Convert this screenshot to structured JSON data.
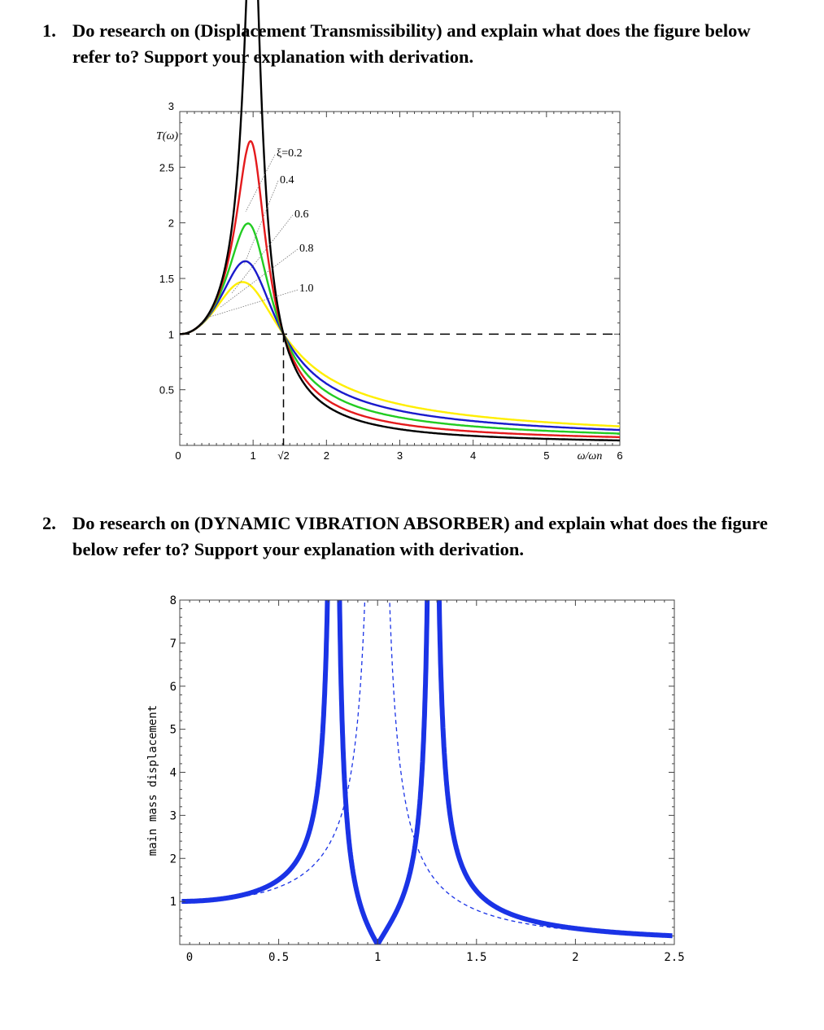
{
  "questions": [
    {
      "number": "1.",
      "text": "Do research on (Displacement Transmissibility) and explain what does the figure below refer to? Support your explanation with derivation."
    },
    {
      "number": "2.",
      "text": "Do research on (DYNAMIC VIBRATION ABSORBER) and explain what does the figure below refer to? Support your explanation with derivation."
    }
  ],
  "chart_data": [
    {
      "type": "line",
      "title": "",
      "xlabel": "ω/ωn",
      "ylabel": "T(ω)",
      "xlim": [
        0,
        6
      ],
      "ylim": [
        0,
        3
      ],
      "x_ticks": [
        "0",
        "1",
        "√2",
        "2",
        "3",
        "4",
        "5",
        "6"
      ],
      "y_ticks": [
        "0.5",
        "1",
        "1.5",
        "2",
        "2.5",
        "3"
      ],
      "grid": false,
      "reference_lines": [
        {
          "kind": "horizontal",
          "y": 1,
          "style": "dashed"
        },
        {
          "kind": "vertical",
          "x": 1.414,
          "style": "dashed"
        }
      ],
      "series": [
        {
          "name": "ξ=0.2",
          "damping": 0.2,
          "color": "#000000"
        },
        {
          "name": "0.4",
          "damping": 0.4,
          "color": "#e41a1c"
        },
        {
          "name": "0.6",
          "damping": 0.6,
          "color": "#22cc22"
        },
        {
          "name": "0.8",
          "damping": 0.8,
          "color": "#1a1acc"
        },
        {
          "name": "1.0",
          "damping": 1.0,
          "color": "#ffee00"
        }
      ],
      "sample_x": [
        0,
        0.5,
        1,
        1.414,
        2,
        3,
        4,
        5,
        6
      ],
      "annotations": [
        "ξ=0.2",
        "0.4",
        "0.6",
        "0.8",
        "1.0"
      ]
    },
    {
      "type": "line",
      "title": "",
      "xlabel": "",
      "ylabel": "main mass displacement",
      "xlim": [
        0,
        2.5
      ],
      "ylim": [
        0,
        8
      ],
      "x_ticks": [
        "0",
        "0.5",
        "1",
        "1.5",
        "2",
        "2.5"
      ],
      "y_ticks": [
        "1",
        "2",
        "3",
        "4",
        "5",
        "6",
        "7",
        "8"
      ],
      "grid": false,
      "series": [
        {
          "style": "solid-thick",
          "color": "#1a33e6",
          "resonances": [
            0.78,
            1.28
          ],
          "antiresonance": 1.0
        },
        {
          "style": "dashed-thin",
          "color": "#1a33e6",
          "resonances": [
            1.0
          ]
        }
      ]
    }
  ]
}
